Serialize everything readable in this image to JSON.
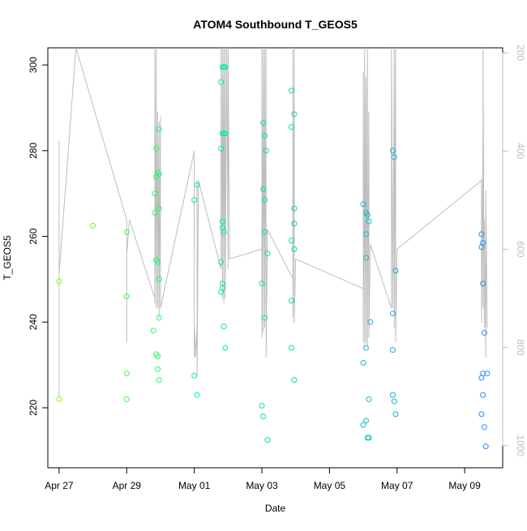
{
  "chart_data": {
    "type": "scatter",
    "title": "ATOM4 Southbound T_GEOS5",
    "xlabel": "Date",
    "ylabel": "T_GEOS5",
    "x_type": "date",
    "xlim": [
      "2018-04-26T16:00",
      "2018-05-10T03:00"
    ],
    "ylim": [
      206,
      304
    ],
    "y2lim": [
      1045,
      190
    ],
    "x_ticks": [
      {
        "value": "2018-04-27",
        "label": "Apr 27"
      },
      {
        "value": "2018-04-29",
        "label": "Apr 29"
      },
      {
        "value": "2018-05-01",
        "label": "May 01"
      },
      {
        "value": "2018-05-03",
        "label": "May 03"
      },
      {
        "value": "2018-05-05",
        "label": "May 05"
      },
      {
        "value": "2018-05-07",
        "label": "May 07"
      },
      {
        "value": "2018-05-09",
        "label": "May 09"
      }
    ],
    "y_ticks": [
      220,
      240,
      260,
      280,
      300
    ],
    "y2_ticks": [
      200,
      400,
      600,
      800,
      1000
    ],
    "grid": false,
    "legend": "none",
    "colors": {
      "start": "#7fff00",
      "mid": "#00ff7f",
      "end": "#1e90ff",
      "profile": "#bebebe"
    },
    "series": [
      {
        "axis": "left",
        "style": "points",
        "values": [
          {
            "x": "2018-04-27T00:00",
            "y": 249.5
          },
          {
            "x": "2018-04-27T00:00",
            "y": 222.0
          },
          {
            "x": "2018-04-28T00:00",
            "y": 262.5
          },
          {
            "x": "2018-04-29T00:00",
            "y": 261.0
          },
          {
            "x": "2018-04-29T00:00",
            "y": 246.0
          },
          {
            "x": "2018-04-29T00:00",
            "y": 228.0
          },
          {
            "x": "2018-04-29T00:00",
            "y": 222.0
          },
          {
            "x": "2018-04-29T19:00",
            "y": 238.0
          },
          {
            "x": "2018-04-29T20:00",
            "y": 265.5
          },
          {
            "x": "2018-04-29T20:00",
            "y": 270.0
          },
          {
            "x": "2018-04-29T21:00",
            "y": 280.5
          },
          {
            "x": "2018-04-29T21:00",
            "y": 274.0
          },
          {
            "x": "2018-04-29T21:00",
            "y": 254.5
          },
          {
            "x": "2018-04-29T21:00",
            "y": 232.5
          },
          {
            "x": "2018-04-29T22:00",
            "y": 275.0
          },
          {
            "x": "2018-04-29T22:00",
            "y": 254.0
          },
          {
            "x": "2018-04-29T22:00",
            "y": 229.0
          },
          {
            "x": "2018-04-29T22:00",
            "y": 232.0
          },
          {
            "x": "2018-04-29T23:00",
            "y": 285.0
          },
          {
            "x": "2018-04-29T23:00",
            "y": 274.5
          },
          {
            "x": "2018-04-29T23:00",
            "y": 266.5
          },
          {
            "x": "2018-04-29T23:00",
            "y": 250.0
          },
          {
            "x": "2018-04-29T23:00",
            "y": 241.0
          },
          {
            "x": "2018-04-29T23:00",
            "y": 226.5
          },
          {
            "x": "2018-05-01T00:00",
            "y": 268.5
          },
          {
            "x": "2018-05-01T00:00",
            "y": 227.5
          },
          {
            "x": "2018-05-01T02:00",
            "y": 272.0
          },
          {
            "x": "2018-05-01T02:00",
            "y": 223.0
          },
          {
            "x": "2018-05-01T19:00",
            "y": 296.0
          },
          {
            "x": "2018-05-01T19:00",
            "y": 280.5
          },
          {
            "x": "2018-05-01T19:00",
            "y": 254.0
          },
          {
            "x": "2018-05-01T19:00",
            "y": 247.0
          },
          {
            "x": "2018-05-01T20:00",
            "y": 299.5
          },
          {
            "x": "2018-05-01T20:00",
            "y": 284.0
          },
          {
            "x": "2018-05-01T20:00",
            "y": 263.5
          },
          {
            "x": "2018-05-01T20:00",
            "y": 262.0
          },
          {
            "x": "2018-05-01T20:00",
            "y": 249.0
          },
          {
            "x": "2018-05-01T20:00",
            "y": 248.0
          },
          {
            "x": "2018-05-01T21:00",
            "y": 299.5
          },
          {
            "x": "2018-05-01T21:00",
            "y": 284.0
          },
          {
            "x": "2018-05-01T21:00",
            "y": 261.0
          },
          {
            "x": "2018-05-01T21:00",
            "y": 239.0
          },
          {
            "x": "2018-05-01T22:00",
            "y": 299.5
          },
          {
            "x": "2018-05-01T22:00",
            "y": 284.0
          },
          {
            "x": "2018-05-01T22:00",
            "y": 234.0
          },
          {
            "x": "2018-05-03T00:00",
            "y": 249.0
          },
          {
            "x": "2018-05-03T00:00",
            "y": 220.5
          },
          {
            "x": "2018-05-03T01:00",
            "y": 286.5
          },
          {
            "x": "2018-05-03T01:00",
            "y": 271.0
          },
          {
            "x": "2018-05-03T01:00",
            "y": 218.0
          },
          {
            "x": "2018-05-03T02:00",
            "y": 283.5
          },
          {
            "x": "2018-05-03T02:00",
            "y": 268.5
          },
          {
            "x": "2018-05-03T02:00",
            "y": 261.0
          },
          {
            "x": "2018-05-03T02:00",
            "y": 241.0
          },
          {
            "x": "2018-05-03T03:00",
            "y": 280.0
          },
          {
            "x": "2018-05-03T04:00",
            "y": 256.0
          },
          {
            "x": "2018-05-03T04:00",
            "y": 212.5
          },
          {
            "x": "2018-05-03T21:00",
            "y": 294.0
          },
          {
            "x": "2018-05-03T21:00",
            "y": 285.5
          },
          {
            "x": "2018-05-03T21:00",
            "y": 259.0
          },
          {
            "x": "2018-05-03T21:00",
            "y": 245.0
          },
          {
            "x": "2018-05-03T21:00",
            "y": 234.0
          },
          {
            "x": "2018-05-03T23:00",
            "y": 288.5
          },
          {
            "x": "2018-05-03T23:00",
            "y": 266.5
          },
          {
            "x": "2018-05-03T23:00",
            "y": 263.0
          },
          {
            "x": "2018-05-03T23:00",
            "y": 257.0
          },
          {
            "x": "2018-05-03T23:00",
            "y": 226.5
          },
          {
            "x": "2018-05-06T00:00",
            "y": 267.5
          },
          {
            "x": "2018-05-06T00:00",
            "y": 230.5
          },
          {
            "x": "2018-05-06T00:00",
            "y": 216.0
          },
          {
            "x": "2018-05-06T02:00",
            "y": 265.5
          },
          {
            "x": "2018-05-06T02:00",
            "y": 260.5
          },
          {
            "x": "2018-05-06T02:00",
            "y": 255.0
          },
          {
            "x": "2018-05-06T02:00",
            "y": 234.0
          },
          {
            "x": "2018-05-06T02:00",
            "y": 217.0
          },
          {
            "x": "2018-05-06T03:00",
            "y": 265.0
          },
          {
            "x": "2018-05-06T03:00",
            "y": 213.0
          },
          {
            "x": "2018-05-06T04:00",
            "y": 263.5
          },
          {
            "x": "2018-05-06T04:00",
            "y": 222.0
          },
          {
            "x": "2018-05-06T04:00",
            "y": 213.0
          },
          {
            "x": "2018-05-06T05:00",
            "y": 240.0
          },
          {
            "x": "2018-05-06T21:00",
            "y": 280.0
          },
          {
            "x": "2018-05-06T21:00",
            "y": 242.0
          },
          {
            "x": "2018-05-06T21:00",
            "y": 233.5
          },
          {
            "x": "2018-05-06T21:00",
            "y": 223.0
          },
          {
            "x": "2018-05-06T22:00",
            "y": 278.5
          },
          {
            "x": "2018-05-06T22:00",
            "y": 221.5
          },
          {
            "x": "2018-05-06T23:00",
            "y": 252.0
          },
          {
            "x": "2018-05-06T23:00",
            "y": 218.5
          },
          {
            "x": "2018-05-09T12:00",
            "y": 260.5
          },
          {
            "x": "2018-05-09T12:00",
            "y": 257.5
          },
          {
            "x": "2018-05-09T12:00",
            "y": 227.0
          },
          {
            "x": "2018-05-09T12:00",
            "y": 218.5
          },
          {
            "x": "2018-05-09T13:00",
            "y": 258.5
          },
          {
            "x": "2018-05-09T13:00",
            "y": 249.0
          },
          {
            "x": "2018-05-09T13:00",
            "y": 228.0
          },
          {
            "x": "2018-05-09T13:00",
            "y": 223.0
          },
          {
            "x": "2018-05-09T14:00",
            "y": 237.5
          },
          {
            "x": "2018-05-09T14:00",
            "y": 215.5
          },
          {
            "x": "2018-05-09T15:00",
            "y": 211.0
          },
          {
            "x": "2018-05-09T16:00",
            "y": 228.0
          }
        ]
      },
      {
        "axis": "right",
        "style": "line",
        "values": [
          {
            "x": "2018-04-27T00:00",
            "y": 380
          },
          {
            "x": "2018-04-27T00:00",
            "y": 900
          },
          {
            "x": "2018-04-27T00:00",
            "y": 650
          },
          {
            "x": "2018-04-27T12:00",
            "y": 190
          },
          {
            "x": "2018-04-29T00:00",
            "y": 540
          },
          {
            "x": "2018-04-29T00:00",
            "y": 650
          },
          {
            "x": "2018-04-29T00:00",
            "y": 690
          },
          {
            "x": "2018-04-29T00:00",
            "y": 790
          },
          {
            "x": "2018-04-29T00:00",
            "y": 610
          },
          {
            "x": "2018-04-29T02:00",
            "y": 540
          },
          {
            "x": "2018-04-29T20:00",
            "y": 700
          },
          {
            "x": "2018-04-29T20:00",
            "y": 190
          },
          {
            "x": "2018-04-29T20:00",
            "y": 710
          },
          {
            "x": "2018-04-29T21:00",
            "y": 190
          },
          {
            "x": "2018-04-29T21:00",
            "y": 720
          },
          {
            "x": "2018-04-29T21:00",
            "y": 300
          },
          {
            "x": "2018-04-29T22:00",
            "y": 700
          },
          {
            "x": "2018-04-29T22:00",
            "y": 320
          },
          {
            "x": "2018-04-29T22:00",
            "y": 720
          },
          {
            "x": "2018-04-29T23:00",
            "y": 340
          },
          {
            "x": "2018-04-29T23:00",
            "y": 740
          },
          {
            "x": "2018-04-30T00:00",
            "y": 330
          },
          {
            "x": "2018-04-30T00:00",
            "y": 720
          },
          {
            "x": "2018-05-01T00:00",
            "y": 400
          },
          {
            "x": "2018-05-01T00:00",
            "y": 820
          },
          {
            "x": "2018-05-01T00:00",
            "y": 750
          },
          {
            "x": "2018-05-01T01:00",
            "y": 820
          },
          {
            "x": "2018-05-01T02:00",
            "y": 750
          },
          {
            "x": "2018-05-01T02:00",
            "y": 460
          },
          {
            "x": "2018-05-01T02:00",
            "y": 860
          },
          {
            "x": "2018-05-01T03:00",
            "y": 460
          },
          {
            "x": "2018-05-01T19:00",
            "y": 640
          },
          {
            "x": "2018-05-01T19:00",
            "y": 190
          },
          {
            "x": "2018-05-01T20:00",
            "y": 690
          },
          {
            "x": "2018-05-01T20:00",
            "y": 190
          },
          {
            "x": "2018-05-01T20:00",
            "y": 700
          },
          {
            "x": "2018-05-01T21:00",
            "y": 190
          },
          {
            "x": "2018-05-01T21:00",
            "y": 710
          },
          {
            "x": "2018-05-01T21:00",
            "y": 190
          },
          {
            "x": "2018-05-01T22:00",
            "y": 680
          },
          {
            "x": "2018-05-01T22:00",
            "y": 190
          },
          {
            "x": "2018-05-01T22:00",
            "y": 700
          },
          {
            "x": "2018-05-01T23:00",
            "y": 190
          },
          {
            "x": "2018-05-02T00:00",
            "y": 640
          },
          {
            "x": "2018-05-02T00:00",
            "y": 190
          },
          {
            "x": "2018-05-02T01:00",
            "y": 620
          },
          {
            "x": "2018-05-03T00:00",
            "y": 600
          },
          {
            "x": "2018-05-03T00:00",
            "y": 190
          },
          {
            "x": "2018-05-03T00:00",
            "y": 780
          },
          {
            "x": "2018-05-03T01:00",
            "y": 190
          },
          {
            "x": "2018-05-03T01:00",
            "y": 770
          },
          {
            "x": "2018-05-03T02:00",
            "y": 190
          },
          {
            "x": "2018-05-03T02:00",
            "y": 760
          },
          {
            "x": "2018-05-03T03:00",
            "y": 190
          },
          {
            "x": "2018-05-03T03:00",
            "y": 820
          },
          {
            "x": "2018-05-03T04:00",
            "y": 560
          },
          {
            "x": "2018-05-03T22:00",
            "y": 660
          },
          {
            "x": "2018-05-03T22:00",
            "y": 190
          },
          {
            "x": "2018-05-03T22:00",
            "y": 740
          },
          {
            "x": "2018-05-03T23:00",
            "y": 190
          },
          {
            "x": "2018-05-03T23:00",
            "y": 750
          },
          {
            "x": "2018-05-04T00:00",
            "y": 620
          },
          {
            "x": "2018-05-06T00:00",
            "y": 680
          },
          {
            "x": "2018-05-06T00:00",
            "y": 240
          },
          {
            "x": "2018-05-06T00:00",
            "y": 790
          },
          {
            "x": "2018-05-06T01:00",
            "y": 190
          },
          {
            "x": "2018-05-06T01:00",
            "y": 800
          },
          {
            "x": "2018-05-06T02:00",
            "y": 250
          },
          {
            "x": "2018-05-06T02:00",
            "y": 790
          },
          {
            "x": "2018-05-06T03:00",
            "y": 190
          },
          {
            "x": "2018-05-06T03:00",
            "y": 800
          },
          {
            "x": "2018-05-06T04:00",
            "y": 320
          },
          {
            "x": "2018-05-06T04:00",
            "y": 780
          },
          {
            "x": "2018-05-06T05:00",
            "y": 590
          },
          {
            "x": "2018-05-06T20:00",
            "y": 720
          },
          {
            "x": "2018-05-06T20:00",
            "y": 190
          },
          {
            "x": "2018-05-06T21:00",
            "y": 720
          },
          {
            "x": "2018-05-06T22:00",
            "y": 190
          },
          {
            "x": "2018-05-06T22:00",
            "y": 760
          },
          {
            "x": "2018-05-06T23:00",
            "y": 190
          },
          {
            "x": "2018-05-06T23:00",
            "y": 790
          },
          {
            "x": "2018-05-07T00:00",
            "y": 600
          },
          {
            "x": "2018-05-09T12:00",
            "y": 460
          },
          {
            "x": "2018-05-09T12:00",
            "y": 560
          },
          {
            "x": "2018-05-09T12:00",
            "y": 750
          },
          {
            "x": "2018-05-09T13:00",
            "y": 360
          },
          {
            "x": "2018-05-09T13:00",
            "y": 720
          },
          {
            "x": "2018-05-09T13:00",
            "y": 190
          },
          {
            "x": "2018-05-09T14:00",
            "y": 760
          },
          {
            "x": "2018-05-09T14:00",
            "y": 540
          },
          {
            "x": "2018-05-09T15:00",
            "y": 820
          },
          {
            "x": "2018-05-09T15:00",
            "y": 480
          },
          {
            "x": "2018-05-09T16:00",
            "y": 760
          }
        ]
      }
    ]
  }
}
